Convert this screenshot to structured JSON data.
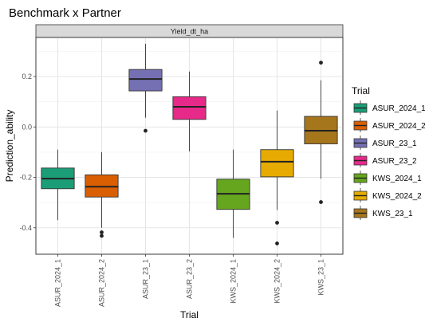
{
  "chart_data": {
    "type": "box",
    "title": "Benchmark x Partner",
    "facet_label": "Yield_dt_ha",
    "xlabel": "Trial",
    "ylabel": "Prediction_ability",
    "ylim": [
      -0.505,
      0.355
    ],
    "yticks": [
      -0.4,
      -0.2,
      0.0,
      0.2
    ],
    "ytick_labels": [
      "-0.4",
      "-0.2",
      "0.0",
      "0.2"
    ],
    "grid": true,
    "legend": {
      "title": "Trial",
      "position": "right",
      "labels": [
        "ASUR_2024_1",
        "ASUR_2024_2",
        "ASUR_23_1",
        "ASUR_23_2",
        "KWS_2024_1",
        "KWS_2024_2",
        "KWS_23_1"
      ]
    },
    "categories": [
      "ASUR_2024_1",
      "ASUR_2024_2",
      "ASUR_23_1",
      "ASUR_23_2",
      "KWS_2024_1",
      "KWS_2024_2",
      "KWS_23_1"
    ],
    "colors": [
      "#1b9e77",
      "#d95f02",
      "#7570b3",
      "#e7298a",
      "#66a61e",
      "#e6ab02",
      "#a6761d"
    ],
    "boxes": [
      {
        "min": -0.37,
        "q1": -0.245,
        "median": -0.205,
        "q3": -0.163,
        "max": -0.09,
        "outliers": []
      },
      {
        "min": -0.4,
        "q1": -0.278,
        "median": -0.237,
        "q3": -0.19,
        "max": -0.1,
        "outliers": [
          -0.418,
          -0.432
        ]
      },
      {
        "min": 0.037,
        "q1": 0.143,
        "median": 0.19,
        "q3": 0.228,
        "max": 0.33,
        "outliers": [
          -0.015
        ]
      },
      {
        "min": -0.097,
        "q1": 0.03,
        "median": 0.08,
        "q3": 0.12,
        "max": 0.22,
        "outliers": []
      },
      {
        "min": -0.44,
        "q1": -0.327,
        "median": -0.265,
        "q3": -0.207,
        "max": -0.09,
        "outliers": []
      },
      {
        "min": -0.33,
        "q1": -0.198,
        "median": -0.138,
        "q3": -0.09,
        "max": 0.065,
        "outliers": [
          -0.38,
          -0.462
        ]
      },
      {
        "min": -0.205,
        "q1": -0.067,
        "median": -0.015,
        "q3": 0.042,
        "max": 0.185,
        "outliers": [
          -0.298,
          0.255
        ]
      }
    ]
  }
}
